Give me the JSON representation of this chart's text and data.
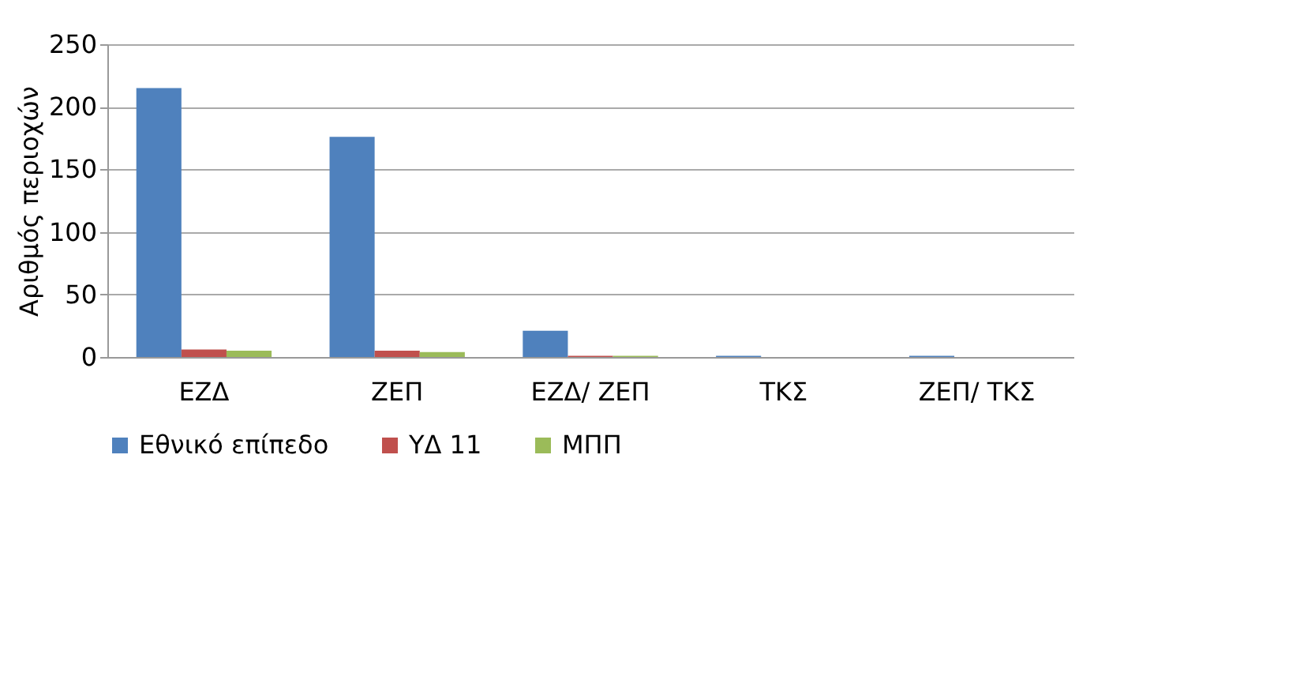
{
  "chart_data": {
    "type": "bar",
    "categories": [
      "ΕΖΔ",
      "ΖΕΠ",
      "ΕΖΔ/ ΖΕΠ",
      "ΤΚΣ",
      "ΖΕΠ/ ΤΚΣ"
    ],
    "ylabel": "Αριθμός περιοχών",
    "ylim": [
      0,
      250
    ],
    "yticks": [
      0,
      50,
      100,
      150,
      200,
      250
    ],
    "grid": "y",
    "legend": "bottom",
    "series": [
      {
        "name": "Εθνικό επίπεδο",
        "color": "#4f81bd",
        "values": [
          215,
          176,
          21,
          1,
          1
        ]
      },
      {
        "name": "ΥΔ 11",
        "color": "#c0504d",
        "values": [
          6,
          5,
          1,
          0,
          0
        ]
      },
      {
        "name": "ΜΠΠ",
        "color": "#9bbb59",
        "values": [
          5,
          4,
          1,
          0,
          0
        ]
      }
    ]
  }
}
